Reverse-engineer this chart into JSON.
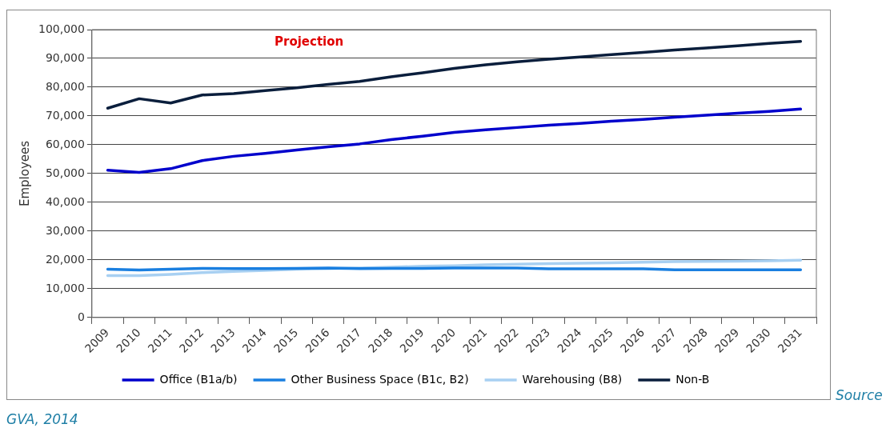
{
  "chart_data": {
    "type": "line",
    "ylabel": "Employees",
    "categories": [
      "2009",
      "2010",
      "2011",
      "2012",
      "2013",
      "2014",
      "2015",
      "2016",
      "2017",
      "2018",
      "2019",
      "2020",
      "2021",
      "2022",
      "2023",
      "2024",
      "2025",
      "2026",
      "2027",
      "2028",
      "2029",
      "2030",
      "2031"
    ],
    "series": [
      {
        "name": "Office (B1a/b)",
        "color": "#0000cc",
        "values": [
          51200,
          50400,
          51700,
          54500,
          56000,
          57000,
          58200,
          59300,
          60300,
          61800,
          63000,
          64300,
          65200,
          66000,
          66800,
          67400,
          68200,
          68800,
          69600,
          70300,
          71000,
          71600,
          72400
        ]
      },
      {
        "name": "Other Business Space (B1c, B2)",
        "color": "#1a7fe0",
        "values": [
          16800,
          16500,
          16800,
          17100,
          17000,
          17000,
          17100,
          17200,
          17000,
          17100,
          17100,
          17200,
          17200,
          17200,
          16900,
          16900,
          16900,
          16900,
          16600,
          16600,
          16600,
          16600,
          16600
        ]
      },
      {
        "name": "Warehousing (B8)",
        "color": "#a8d0f2",
        "values": [
          14600,
          14600,
          15000,
          15600,
          16000,
          16400,
          16800,
          17000,
          17200,
          17500,
          17800,
          18000,
          18300,
          18500,
          18700,
          18900,
          19000,
          19200,
          19400,
          19500,
          19600,
          19700,
          19900
        ]
      },
      {
        "name": "Non-B",
        "color": "#0a1e3c",
        "values": [
          72700,
          76000,
          74500,
          77300,
          77800,
          78800,
          79800,
          81000,
          82000,
          83600,
          85000,
          86500,
          87800,
          88800,
          89700,
          90500,
          91300,
          92100,
          92900,
          93600,
          94400,
          95200,
          95900
        ]
      }
    ],
    "ylim": [
      0,
      100000
    ],
    "yticks": [
      0,
      {
        "value": 10000,
        "label": "10,000"
      },
      {
        "value": 20000,
        "label": "20,000"
      },
      {
        "value": 30000,
        "label": "30,000"
      },
      {
        "value": 40000,
        "label": "40,000"
      },
      {
        "value": 50000,
        "label": "50,000"
      },
      {
        "value": 60000,
        "label": "60,000"
      },
      {
        "value": 70000,
        "label": "70,000"
      },
      {
        "value": 80000,
        "label": "80,000"
      },
      {
        "value": 90000,
        "label": "90,000"
      },
      {
        "value": 100000,
        "label": "100,000"
      }
    ],
    "grid": "y",
    "legend": "bottom",
    "marker": "none",
    "line_style": "solid",
    "annotations": [
      "Projection",
      "Source",
      "GVA, 2014"
    ]
  }
}
